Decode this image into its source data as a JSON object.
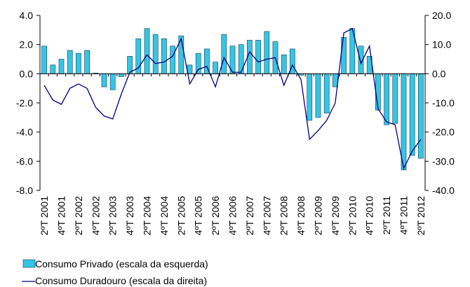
{
  "chart_data": {
    "type": "bar_line",
    "categories": [
      "2ºT 2001",
      null,
      "4ºT 2001",
      null,
      "2ºT 2002",
      null,
      "4ºT 2002",
      null,
      "2ºT 2003",
      null,
      "4ºT 2003",
      null,
      "2ºT 2004",
      null,
      "4ºT 2004",
      null,
      "2ºT 2005",
      null,
      "4ºT 2005",
      null,
      "2ºT 2006",
      null,
      "4ºT 2006",
      null,
      "2ºT 2007",
      null,
      "4ºT 2007",
      null,
      "2ºT 2008",
      null,
      "4ºT 2008",
      null,
      "2ºT 2009",
      null,
      "4ºT 2009",
      null,
      "2ºT 2010",
      null,
      "4ºT 2010",
      null,
      "2ºT 2011",
      null,
      "4ºT 2011",
      null,
      "2ºT 2012"
    ],
    "series": [
      {
        "name": "Consumo Privado (escala da esquerda)",
        "type": "bar",
        "color": "#33c6e6",
        "values": [
          1.9,
          0.6,
          1.0,
          1.6,
          1.4,
          1.6,
          0.05,
          -0.9,
          -1.1,
          -0.2,
          1.2,
          2.4,
          3.1,
          2.7,
          2.4,
          1.9,
          2.6,
          0.6,
          1.4,
          1.7,
          0.8,
          2.7,
          1.9,
          2.0,
          2.3,
          2.3,
          2.9,
          2.2,
          1.3,
          1.7,
          -0.1,
          -3.2,
          -3.0,
          -2.7,
          -0.9,
          2.5,
          3.1,
          1.9,
          1.2,
          -2.5,
          -3.5,
          -3.4,
          -6.6,
          -5.6,
          -5.8
        ]
      },
      {
        "name": "Consumo Duradouro (escala da direita)",
        "type": "line",
        "axis": "y2",
        "color": "#000080",
        "values": [
          -4,
          -9,
          -10.5,
          -5,
          -3.5,
          -5,
          -11.5,
          -14.5,
          -15.5,
          -7,
          0.5,
          2,
          6.5,
          3.5,
          4,
          6,
          12,
          -3.5,
          1.5,
          2.5,
          -4.5,
          5.5,
          0.5,
          0.5,
          7.5,
          4,
          5,
          5.5,
          -4,
          3,
          -2,
          -22.5,
          -19.5,
          -16,
          -10,
          14,
          15.5,
          3.5,
          9.5,
          -12,
          -16.5,
          -17.5,
          -32.5,
          -26.5,
          -22.5
        ]
      }
    ],
    "ylim": [
      -8,
      4
    ],
    "yticks": [
      {
        "value": 4,
        "label": "4.0"
      },
      {
        "value": 2,
        "label": "2.0"
      },
      {
        "value": 0,
        "label": "0.0"
      },
      {
        "value": -2,
        "label": "-2.0"
      },
      {
        "value": -4,
        "label": "-4.0"
      },
      {
        "value": -6,
        "label": "-6.0"
      },
      {
        "value": -8,
        "label": "-8.0"
      }
    ],
    "y2lim": [
      -40,
      20
    ],
    "y2ticks": [
      {
        "value": 20,
        "label": "20.0"
      },
      {
        "value": 10,
        "label": "10.0"
      },
      {
        "value": 0,
        "label": "0.0"
      },
      {
        "value": -10,
        "label": "-10.0"
      },
      {
        "value": -20,
        "label": "-20.0"
      },
      {
        "value": -30,
        "label": "-30.0"
      },
      {
        "value": -40,
        "label": "-40.0"
      }
    ]
  }
}
